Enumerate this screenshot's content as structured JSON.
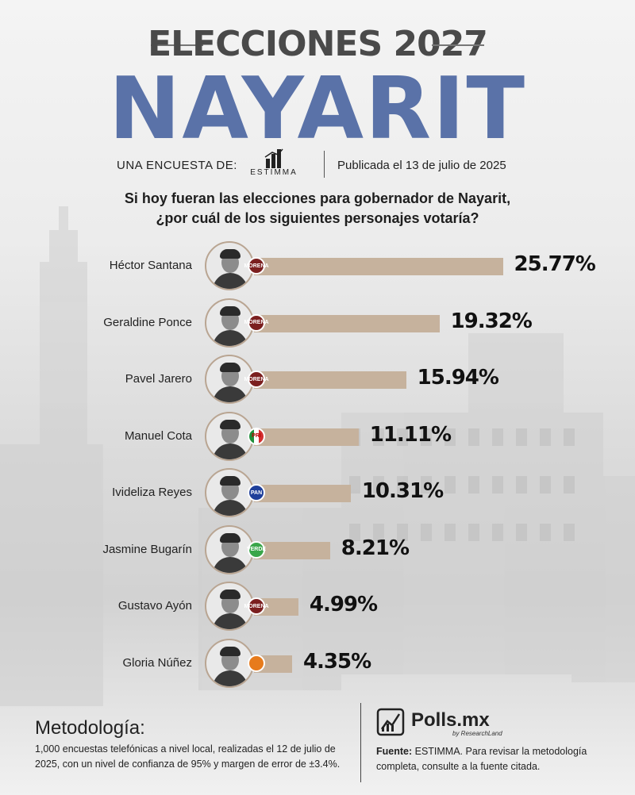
{
  "header": {
    "title": "ELECCIONES 2027",
    "state": "NAYARIT",
    "survey_by_label": "UNA ENCUESTA DE:",
    "pollster_logo_text": "ESTIMMA",
    "published": "Publicada el 13 de julio de 2025"
  },
  "question": {
    "line1": "Si hoy fueran las elecciones para gobernador de Nayarit,",
    "line2": "¿por cuál de los siguientes personajes votaría?"
  },
  "chart_data": {
    "type": "bar",
    "orientation": "horizontal",
    "title": "Si hoy fueran las elecciones para gobernador de Nayarit, ¿por cuál de los siguientes personajes votaría?",
    "categories": [
      "Héctor Santana",
      "Geraldine Ponce",
      "Pavel Jarero",
      "Manuel Cota",
      "Ivideliza Reyes",
      "Jasmine Bugarín",
      "Gustavo Ayón",
      "Gloria Núñez"
    ],
    "values": [
      25.77,
      19.32,
      15.94,
      11.11,
      10.31,
      8.21,
      4.99,
      4.35
    ],
    "value_labels": [
      "25.77%",
      "19.32%",
      "15.94%",
      "11.11%",
      "10.31%",
      "8.21%",
      "4.99%",
      "4.35%"
    ],
    "parties": [
      "morena",
      "morena",
      "morena",
      "pri",
      "pan",
      "verde",
      "morena",
      "mc"
    ],
    "party_labels": [
      "MORENA",
      "MORENA",
      "MORENA",
      "PRI",
      "PAN",
      "VERDE",
      "MORENA",
      ""
    ],
    "bar_color": "#c6b29d",
    "grid": false,
    "legend": "none"
  },
  "party_colors": {
    "morena": "#7b1f1f",
    "pri": "#ffffff",
    "pan": "#1f3f9a",
    "verde": "#3aa64a",
    "mc": "#e77b1c"
  },
  "methodology": {
    "title": "Metodología:",
    "body": "1,000 encuestas telefónicas a nivel local, realizadas el 12 de julio de 2025, con un nivel de confianza de 95% y margen de error de ±3.4%."
  },
  "brand": {
    "name": "Polls.mx",
    "tagline": "by ResearchLand"
  },
  "source": {
    "label": "Fuente:",
    "text": " ESTIMMA. Para revisar la metodología completa, consulte a la fuente citada."
  }
}
